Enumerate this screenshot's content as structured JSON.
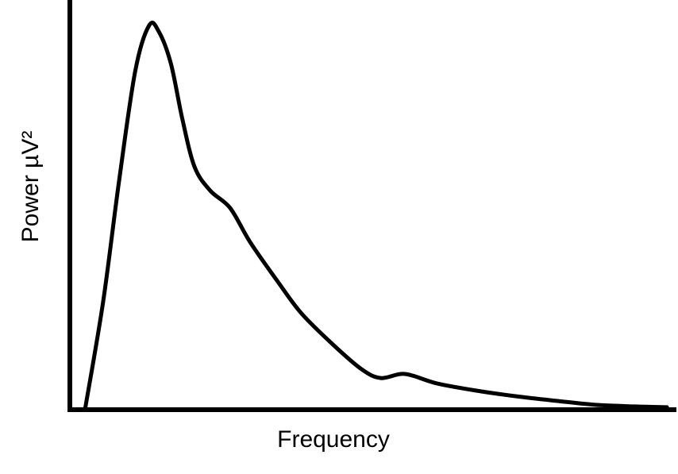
{
  "chart_data": {
    "type": "line",
    "x_label": "Frequency",
    "y_label": "Power µV²",
    "x": [
      2.5,
      5.5,
      8.1,
      10.8,
      13.1,
      14.7,
      16.7,
      18.6,
      20.6,
      23.2,
      26.5,
      29.8,
      34.4,
      38.3,
      43.6,
      48.2,
      51.4,
      55.4,
      60.6,
      67.2,
      73.8,
      80.3,
      86.9,
      93.4,
      98.7
    ],
    "values": [
      0,
      26.6,
      56.0,
      83.4,
      94.7,
      93.2,
      85.3,
      71.6,
      59.9,
      54.0,
      49.7,
      41.3,
      31.5,
      23.7,
      15.9,
      10.0,
      7.8,
      8.8,
      6.5,
      4.7,
      3.3,
      2.2,
      1.2,
      0.8,
      0.6
    ],
    "xlim": [
      0,
      100
    ],
    "ylim": [
      0,
      100
    ],
    "color": "#000000"
  }
}
